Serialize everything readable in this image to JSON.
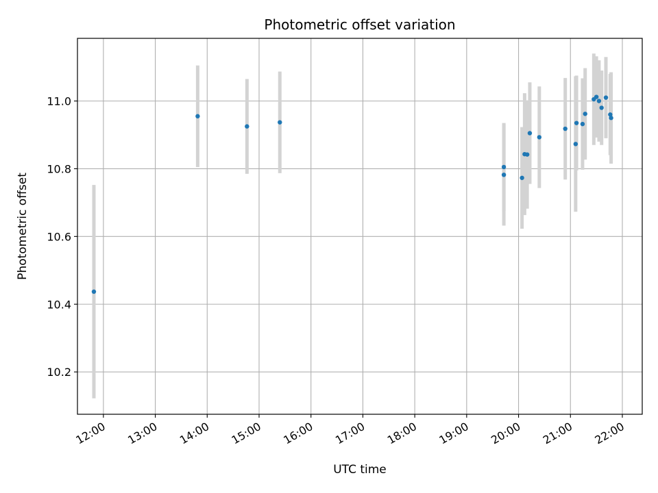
{
  "chart_data": {
    "type": "scatter",
    "title": "Photometric offset variation",
    "xlabel": "UTC time",
    "ylabel": "Photometric offset",
    "x_ticks": [
      "12:00",
      "13:00",
      "14:00",
      "15:00",
      "16:00",
      "17:00",
      "18:00",
      "19:00",
      "20:00",
      "21:00",
      "22:00"
    ],
    "y_ticks": [
      "10.2",
      "10.4",
      "10.6",
      "10.8",
      "11.0"
    ],
    "xlim": [
      "11:30",
      "22:23"
    ],
    "ylim": [
      10.075,
      11.185
    ],
    "grid": true,
    "colors": {
      "point": "#1f77b4",
      "errorbar": "#d3d3d3",
      "grid": "#b0b0b0"
    },
    "points": [
      {
        "x": "11:49",
        "y": 10.437,
        "err": 0.315
      },
      {
        "x": "13:49",
        "y": 10.955,
        "err": 0.15
      },
      {
        "x": "14:46",
        "y": 10.925,
        "err": 0.14
      },
      {
        "x": "15:24",
        "y": 10.937,
        "err": 0.15
      },
      {
        "x": "19:43",
        "y": 10.805,
        "err": 0.13
      },
      {
        "x": "19:43",
        "y": 10.782,
        "err": 0.15
      },
      {
        "x": "20:04",
        "y": 10.773,
        "err": 0.15
      },
      {
        "x": "20:07",
        "y": 10.843,
        "err": 0.18
      },
      {
        "x": "20:10",
        "y": 10.842,
        "err": 0.16
      },
      {
        "x": "20:13",
        "y": 10.905,
        "err": 0.15
      },
      {
        "x": "20:24",
        "y": 10.893,
        "err": 0.15
      },
      {
        "x": "20:54",
        "y": 10.918,
        "err": 0.15
      },
      {
        "x": "21:06",
        "y": 10.873,
        "err": 0.2
      },
      {
        "x": "21:07",
        "y": 10.935,
        "err": 0.14
      },
      {
        "x": "21:14",
        "y": 10.932,
        "err": 0.135
      },
      {
        "x": "21:17",
        "y": 10.962,
        "err": 0.135
      },
      {
        "x": "21:27",
        "y": 11.005,
        "err": 0.135
      },
      {
        "x": "21:30",
        "y": 11.012,
        "err": 0.12
      },
      {
        "x": "21:33",
        "y": 11.0,
        "err": 0.12
      },
      {
        "x": "21:36",
        "y": 10.98,
        "err": 0.11
      },
      {
        "x": "21:41",
        "y": 11.01,
        "err": 0.12
      },
      {
        "x": "21:46",
        "y": 10.96,
        "err": 0.12
      },
      {
        "x": "21:47",
        "y": 10.95,
        "err": 0.135
      }
    ]
  }
}
